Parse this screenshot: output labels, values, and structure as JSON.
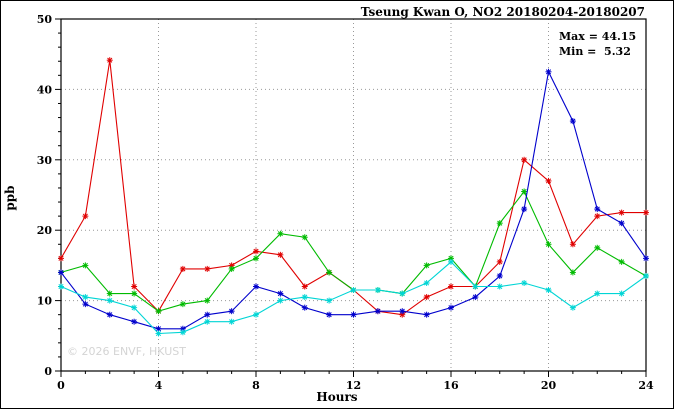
{
  "title": "Tseung Kwan O, NO2 20180204-20180207",
  "annotations": {
    "max_label": "Max = 44.15",
    "min_label": "Min =  5.32"
  },
  "watermark": "© 2026 ENVF, HKUST",
  "chart_data": {
    "type": "line",
    "title": "Tseung Kwan O, NO2 20180204-20180207",
    "xlabel": "Hours",
    "ylabel": "ppb",
    "xlim": [
      0,
      24
    ],
    "ylim": [
      0,
      50
    ],
    "xticks": [
      0,
      4,
      8,
      12,
      16,
      20,
      24
    ],
    "yticks": [
      0,
      10,
      20,
      30,
      40,
      50
    ],
    "grid": true,
    "legend": "none",
    "max_value": 44.15,
    "min_value": 5.32,
    "x": [
      0,
      1,
      2,
      3,
      4,
      5,
      6,
      7,
      8,
      9,
      10,
      11,
      12,
      13,
      14,
      15,
      16,
      17,
      18,
      19,
      20,
      21,
      22,
      23,
      24
    ],
    "series": [
      {
        "name": "series-red",
        "color": "#e00000",
        "values": [
          16,
          22,
          44.15,
          12,
          8.5,
          14.5,
          14.5,
          15,
          17,
          16.5,
          12,
          14,
          11.5,
          8.5,
          8,
          10.5,
          12,
          12,
          15.5,
          30,
          27,
          18,
          22,
          22.5,
          22.5
        ]
      },
      {
        "name": "series-green",
        "color": "#00bb00",
        "values": [
          14,
          15,
          11,
          11,
          8.5,
          9.5,
          10,
          14.5,
          16,
          19.5,
          19,
          14,
          11.5,
          11.5,
          11,
          15,
          16,
          12,
          21,
          25.5,
          18,
          14,
          17.5,
          15.5,
          13.5
        ]
      },
      {
        "name": "series-blue",
        "color": "#0000cc",
        "values": [
          14,
          9.5,
          8,
          7,
          6,
          6,
          8,
          8.5,
          12,
          11,
          9,
          8,
          8,
          8.5,
          8.5,
          8,
          9,
          10.5,
          13.5,
          23,
          42.5,
          35.5,
          23,
          21,
          16
        ]
      },
      {
        "name": "series-cyan",
        "color": "#00d5d5",
        "values": [
          12,
          10.5,
          10,
          9,
          5.32,
          5.5,
          7,
          7,
          8,
          10,
          10.5,
          10,
          11.5,
          11.5,
          11,
          12.5,
          15.5,
          12,
          12,
          12.5,
          11.5,
          9,
          11,
          11,
          13.5
        ]
      }
    ]
  }
}
